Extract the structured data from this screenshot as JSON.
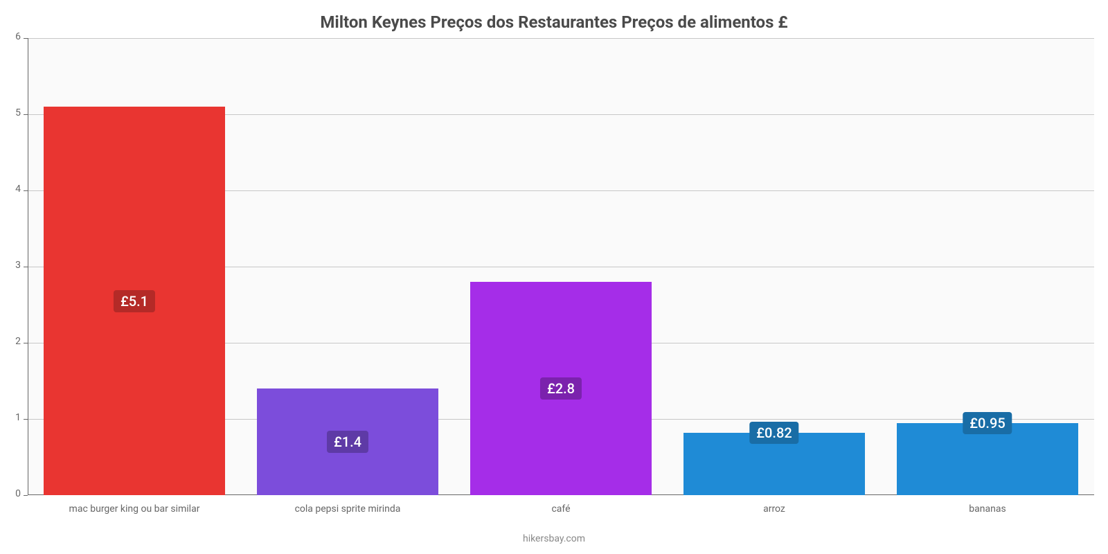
{
  "chart": {
    "type": "bar",
    "title": "Milton Keynes Preços dos Restaurantes Preços de alimentos £",
    "title_fontsize": 24,
    "title_color": "#4a4a4a",
    "background_color": "#ffffff",
    "plot_bg_color": "#fafafa",
    "axis_color": "#666666",
    "grid_color": "#666666",
    "ylim_min": 0,
    "ylim_max": 6,
    "ytick_step": 1,
    "yticks": [
      {
        "v": 0,
        "label": "0"
      },
      {
        "v": 1,
        "label": "1"
      },
      {
        "v": 2,
        "label": "2"
      },
      {
        "v": 3,
        "label": "3"
      },
      {
        "v": 4,
        "label": "4"
      },
      {
        "v": 5,
        "label": "5"
      },
      {
        "v": 6,
        "label": "6"
      }
    ],
    "bar_width_pct": 85,
    "slot_gap_pct": 5,
    "value_label_fontsize": 20,
    "x_label_fontsize": 14,
    "x_label_color": "#666666",
    "y_label_fontsize": 14,
    "y_label_color": "#666666",
    "bars": [
      {
        "category": "mac burger king ou bar similar",
        "value": 5.1,
        "value_label": "£5.1",
        "color": "#e93531",
        "label_bg": "#b42a27",
        "label_pos": "inside"
      },
      {
        "category": "cola pepsi sprite mirinda",
        "value": 1.4,
        "value_label": "£1.4",
        "color": "#7c4ddb",
        "label_bg": "#5e3aa6",
        "label_pos": "inside"
      },
      {
        "category": "café",
        "value": 2.8,
        "value_label": "£2.8",
        "color": "#a52de8",
        "label_bg": "#7b22ad",
        "label_pos": "inside"
      },
      {
        "category": "arroz",
        "value": 0.82,
        "value_label": "£0.82",
        "color": "#1f8bd6",
        "label_bg": "#196da6",
        "label_pos": "top"
      },
      {
        "category": "bananas",
        "value": 0.95,
        "value_label": "£0.95",
        "color": "#1f8bd6",
        "label_bg": "#196da6",
        "label_pos": "top"
      }
    ],
    "attribution": "hikersbay.com",
    "attribution_color": "#888888",
    "attribution_fontsize": 14
  }
}
